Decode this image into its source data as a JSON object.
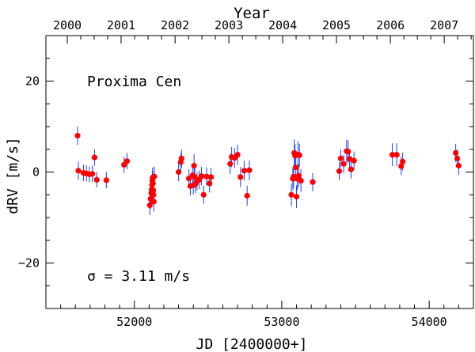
{
  "chart_data": {
    "type": "scatter",
    "title": "",
    "xlabel": "JD [2400000+]",
    "ylabel": "dRV [m/s]",
    "top_xlabel": "Year",
    "xlim": [
      51400,
      54300
    ],
    "ylim": [
      -30,
      30
    ],
    "x_ticks": [
      52000,
      53000,
      54000
    ],
    "x_tick_labels": [
      "52000",
      "53000",
      "54000"
    ],
    "y_ticks": [
      -20,
      0,
      20
    ],
    "y_tick_labels": [
      "−20",
      "0",
      "20"
    ],
    "top_ticks_jd": [
      51545,
      51910,
      52276,
      52641,
      53006,
      53371,
      53737,
      54102
    ],
    "top_tick_labels": [
      "2000",
      "2001",
      "2002",
      "2003",
      "2004",
      "2005",
      "2006",
      "2007"
    ],
    "annotations": {
      "target_name": "Proxima Cen",
      "sigma_text": "σ = 3.11 m/s"
    },
    "colors": {
      "marker": "#ff0000",
      "errorbar": "#1f3fff",
      "axes": "#000000"
    },
    "series": [
      {
        "x": [
          51615,
          51620,
          51655,
          51675,
          51695,
          51715,
          51730,
          51745,
          51810,
          51930,
          51950,
          52105,
          52110,
          52115,
          52118,
          52120,
          52122,
          52124,
          52126,
          52128,
          52130,
          52132,
          52135,
          52300,
          52315,
          52320,
          52370,
          52380,
          52395,
          52400,
          52405,
          52410,
          52415,
          52425,
          52440,
          52455,
          52470,
          52490,
          52510,
          52520,
          52650,
          52660,
          52680,
          52700,
          52720,
          52745,
          52765,
          52780,
          53065,
          53075,
          53080,
          53085,
          53090,
          53095,
          53100,
          53105,
          53110,
          53115,
          53120,
          53130,
          53210,
          53390,
          53400,
          53420,
          53440,
          53450,
          53460,
          53470,
          53490,
          53750,
          53780,
          53810,
          53820,
          54180,
          54190,
          54200
        ],
        "y": [
          8,
          0.3,
          -0.2,
          -0.3,
          -0.5,
          -0.4,
          3.2,
          -1.7,
          -1.8,
          1.6,
          2.4,
          -7.3,
          -5.9,
          -4.6,
          -3.8,
          -2.8,
          -1.9,
          -1.2,
          -2.5,
          -4.0,
          -5.0,
          -6.5,
          -1.0,
          0,
          2.2,
          3.0,
          -1.4,
          -3.1,
          -0.7,
          -2.9,
          1.4,
          -1.1,
          -2.6,
          -2.0,
          -1.7,
          -0.9,
          -5.0,
          -1.0,
          -2.5,
          -1.1,
          1.8,
          3.3,
          3.1,
          3.8,
          -1.1,
          0.3,
          -5.2,
          0.4,
          -5.0,
          -1.5,
          -1.0,
          4.2,
          3.6,
          1.0,
          -5.4,
          -1.5,
          3.8,
          -0.8,
          3.7,
          -1.9,
          -2.2,
          0.2,
          3.0,
          1.8,
          4.6,
          4.5,
          2.9,
          0.6,
          2.5,
          3.8,
          3.8,
          1.3,
          2.3,
          4.2,
          3.0,
          1.4
        ],
        "err": [
          2.0,
          2.0,
          1.8,
          1.8,
          1.7,
          1.8,
          1.8,
          1.7,
          1.8,
          1.8,
          1.8,
          2.2,
          2.2,
          2.2,
          2.2,
          2.2,
          2.2,
          2.2,
          2.2,
          2.2,
          2.2,
          2.2,
          2.2,
          2.0,
          2.0,
          2.0,
          2.0,
          2.0,
          2.0,
          2.0,
          2.5,
          2.0,
          2.0,
          2.0,
          2.0,
          2.0,
          2.0,
          2.0,
          2.0,
          2.0,
          2.2,
          2.2,
          2.2,
          2.2,
          2.2,
          2.2,
          2.2,
          2.2,
          2.5,
          2.5,
          2.5,
          3.0,
          2.5,
          2.5,
          2.5,
          2.5,
          3.0,
          2.5,
          2.5,
          2.5,
          2.0,
          2.0,
          2.0,
          2.0,
          2.5,
          2.5,
          2.0,
          2.0,
          2.0,
          2.5,
          2.5,
          2.0,
          2.0,
          2.0,
          2.0,
          2.0
        ]
      }
    ]
  }
}
